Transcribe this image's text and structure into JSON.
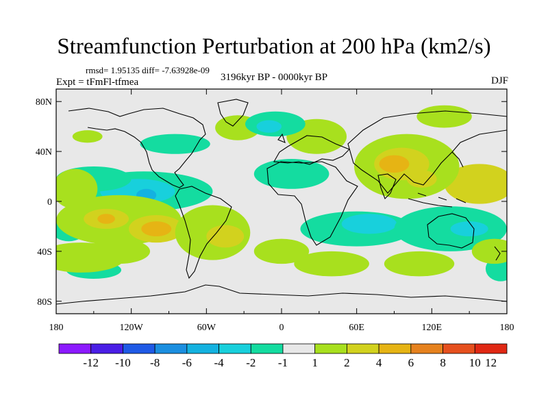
{
  "chart_data": {
    "type": "heatmap",
    "title": "Streamfunction Perturbation at 200 hPa (km2/s)",
    "stats": "rmsd= 1.95135 diff= -7.63928e-09",
    "experiment": "Expt = tFmFl-tfmea",
    "period": "3196kyr BP - 0000kyr BP",
    "season": "DJF",
    "x_ticks": [
      "180",
      "120W",
      "60W",
      "0",
      "60E",
      "120E",
      "180"
    ],
    "x_tick_values": [
      -180,
      -120,
      -60,
      0,
      60,
      120,
      180
    ],
    "y_ticks": [
      "80N",
      "40N",
      "0",
      "40S",
      "80S"
    ],
    "y_tick_values": [
      80,
      40,
      0,
      -40,
      -80
    ],
    "xlim": [
      -180,
      180
    ],
    "ylim": [
      -90,
      90
    ],
    "colorbar_labels": [
      "-12",
      "-10",
      "-8",
      "-6",
      "-4",
      "-2",
      "-1",
      "1",
      "2",
      "4",
      "6",
      "8",
      "10",
      "12"
    ],
    "colorbar_colors": [
      "#8c1aff",
      "#4a1ee6",
      "#1f5ae6",
      "#1b8fe0",
      "#14b2e0",
      "#18d0dc",
      "#14dca0",
      "#e8e8e8",
      "#a8e01e",
      "#d2d21e",
      "#e6b414",
      "#e6821e",
      "#e6501e",
      "#e02814"
    ],
    "blobs": [
      {
        "lon": 158,
        "lat": 14,
        "rx": 28,
        "ry": 16,
        "level": 4
      },
      {
        "lon": 100,
        "lat": 28,
        "rx": 42,
        "ry": 26,
        "level": 2
      },
      {
        "lon": 96,
        "lat": 30,
        "rx": 22,
        "ry": 13,
        "level": 4
      },
      {
        "lon": 90,
        "lat": 30,
        "rx": 12,
        "ry": 7,
        "level": 6
      },
      {
        "lon": 112,
        "lat": 18,
        "rx": 12,
        "ry": 7,
        "level": 4
      },
      {
        "lon": 28,
        "lat": 52,
        "rx": 24,
        "ry": 14,
        "level": 2
      },
      {
        "lon": -35,
        "lat": 59,
        "rx": 18,
        "ry": 10,
        "level": 2
      },
      {
        "lon": 130,
        "lat": 68,
        "rx": 22,
        "ry": 9,
        "level": 2
      },
      {
        "lon": -155,
        "lat": 52,
        "rx": 12,
        "ry": 5,
        "level": 2
      },
      {
        "lon": 8,
        "lat": 22,
        "rx": 30,
        "ry": 12,
        "level": -1
      },
      {
        "lon": -110,
        "lat": 8,
        "rx": 55,
        "ry": 16,
        "level": -1
      },
      {
        "lon": -115,
        "lat": 8,
        "rx": 30,
        "ry": 10,
        "level": -2
      },
      {
        "lon": -108,
        "lat": 5,
        "rx": 8,
        "ry": 5,
        "level": -4
      },
      {
        "lon": -150,
        "lat": 18,
        "rx": 30,
        "ry": 10,
        "level": -1
      },
      {
        "lon": -85,
        "lat": 46,
        "rx": 28,
        "ry": 8,
        "level": -1
      },
      {
        "lon": -5,
        "lat": 62,
        "rx": 24,
        "ry": 10,
        "level": -1
      },
      {
        "lon": -10,
        "lat": 60,
        "rx": 10,
        "ry": 5,
        "level": -2
      },
      {
        "lon": 60,
        "lat": -22,
        "rx": 45,
        "ry": 14,
        "level": -1
      },
      {
        "lon": 70,
        "lat": -18,
        "rx": 22,
        "ry": 8,
        "level": -2
      },
      {
        "lon": 135,
        "lat": -22,
        "rx": 45,
        "ry": 18,
        "level": -1
      },
      {
        "lon": 150,
        "lat": -22,
        "rx": 15,
        "ry": 6,
        "level": -2
      },
      {
        "lon": -170,
        "lat": -22,
        "rx": 14,
        "ry": 10,
        "level": -1
      },
      {
        "lon": 175,
        "lat": -54,
        "rx": 12,
        "ry": 10,
        "level": -1
      },
      {
        "lon": -150,
        "lat": -55,
        "rx": 22,
        "ry": 7,
        "level": -1
      },
      {
        "lon": -130,
        "lat": -15,
        "rx": 50,
        "ry": 20,
        "level": 2
      },
      {
        "lon": -140,
        "lat": -14,
        "rx": 18,
        "ry": 8,
        "level": 4
      },
      {
        "lon": -140,
        "lat": -14,
        "rx": 7,
        "ry": 4,
        "level": 6
      },
      {
        "lon": -100,
        "lat": -22,
        "rx": 22,
        "ry": 11,
        "level": 4
      },
      {
        "lon": -100,
        "lat": -22,
        "rx": 12,
        "ry": 6,
        "level": 6
      },
      {
        "lon": -55,
        "lat": -25,
        "rx": 30,
        "ry": 22,
        "level": 2
      },
      {
        "lon": -45,
        "lat": -28,
        "rx": 15,
        "ry": 9,
        "level": 4
      },
      {
        "lon": -165,
        "lat": 10,
        "rx": 18,
        "ry": 16,
        "level": 2
      },
      {
        "lon": -160,
        "lat": -45,
        "rx": 35,
        "ry": 12,
        "level": 2
      },
      {
        "lon": -130,
        "lat": -40,
        "rx": 25,
        "ry": 10,
        "level": 2
      },
      {
        "lon": 110,
        "lat": -50,
        "rx": 28,
        "ry": 10,
        "level": 2
      },
      {
        "lon": 40,
        "lat": -50,
        "rx": 30,
        "ry": 10,
        "level": 2
      },
      {
        "lon": 170,
        "lat": -40,
        "rx": 18,
        "ry": 10,
        "level": 2
      },
      {
        "lon": 0,
        "lat": -40,
        "rx": 22,
        "ry": 10,
        "level": 2
      }
    ]
  }
}
